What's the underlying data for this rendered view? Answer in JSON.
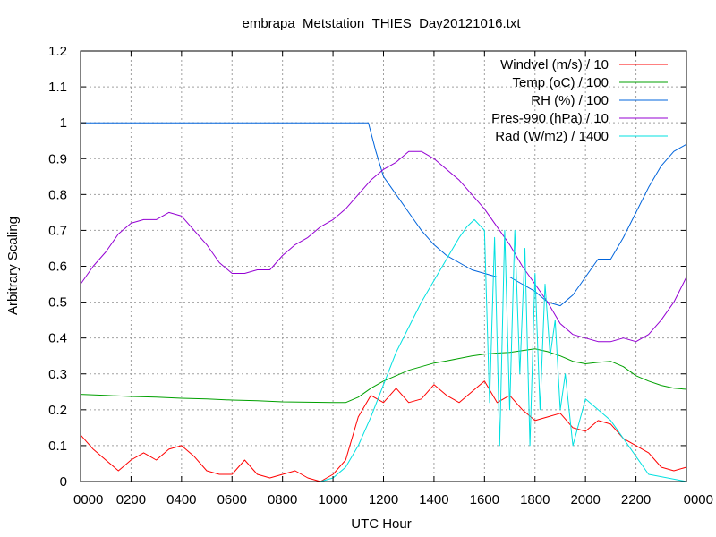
{
  "chart_data": {
    "type": "line",
    "title": "embrapa_Metstation_THIES_Day20121016.txt",
    "xlabel": "UTC Hour",
    "ylabel": "Arbitrary Scaling",
    "xlim": [
      0,
      24
    ],
    "ylim": [
      0,
      1.2
    ],
    "x_ticks": [
      {
        "value": 0,
        "label": "0000"
      },
      {
        "value": 2,
        "label": "0200"
      },
      {
        "value": 4,
        "label": "0400"
      },
      {
        "value": 6,
        "label": "0600"
      },
      {
        "value": 8,
        "label": "0800"
      },
      {
        "value": 10,
        "label": "1000"
      },
      {
        "value": 12,
        "label": "1200"
      },
      {
        "value": 14,
        "label": "1400"
      },
      {
        "value": 16,
        "label": "1600"
      },
      {
        "value": 18,
        "label": "1800"
      },
      {
        "value": 20,
        "label": "2000"
      },
      {
        "value": 22,
        "label": "2200"
      },
      {
        "value": 24,
        "label": "0000"
      }
    ],
    "y_ticks": [
      {
        "value": 0,
        "label": "0"
      },
      {
        "value": 0.1,
        "label": "0.1"
      },
      {
        "value": 0.2,
        "label": "0.2"
      },
      {
        "value": 0.3,
        "label": "0.3"
      },
      {
        "value": 0.4,
        "label": "0.4"
      },
      {
        "value": 0.5,
        "label": "0.5"
      },
      {
        "value": 0.6,
        "label": "0.6"
      },
      {
        "value": 0.7,
        "label": "0.7"
      },
      {
        "value": 0.8,
        "label": "0.8"
      },
      {
        "value": 0.9,
        "label": "0.9"
      },
      {
        "value": 1,
        "label": "1"
      },
      {
        "value": 1.1,
        "label": "1.1"
      },
      {
        "value": 1.2,
        "label": "1.2"
      }
    ],
    "grid": true,
    "legend_position": "top-right",
    "series": [
      {
        "name": "Windvel (m/s) / 10",
        "color": "#ff0000",
        "x": [
          0,
          0.5,
          1,
          1.5,
          2,
          2.5,
          3,
          3.5,
          4,
          4.5,
          5,
          5.5,
          6,
          6.5,
          7,
          7.5,
          8,
          8.5,
          9,
          9.5,
          10,
          10.5,
          11,
          11.5,
          12,
          12.5,
          13,
          13.5,
          14,
          14.5,
          15,
          15.5,
          16,
          16.5,
          17,
          17.5,
          18,
          18.5,
          19,
          19.5,
          20,
          20.5,
          21,
          21.5,
          22,
          22.5,
          23,
          23.5,
          24
        ],
        "y": [
          0.13,
          0.09,
          0.06,
          0.03,
          0.06,
          0.08,
          0.06,
          0.09,
          0.1,
          0.07,
          0.03,
          0.02,
          0.02,
          0.06,
          0.02,
          0.01,
          0.02,
          0.03,
          0.01,
          0,
          0.02,
          0.06,
          0.18,
          0.24,
          0.22,
          0.26,
          0.22,
          0.23,
          0.27,
          0.24,
          0.22,
          0.25,
          0.28,
          0.22,
          0.24,
          0.2,
          0.17,
          0.18,
          0.19,
          0.15,
          0.14,
          0.17,
          0.16,
          0.12,
          0.1,
          0.08,
          0.04,
          0.03,
          0.04
        ]
      },
      {
        "name": "Temp (oC) / 100",
        "color": "#00a000",
        "x": [
          0,
          1,
          2,
          3,
          4,
          5,
          6,
          7,
          8,
          9,
          10,
          10.5,
          11,
          11.5,
          12,
          12.5,
          13,
          13.5,
          14,
          14.5,
          15,
          15.5,
          16,
          16.5,
          17,
          17.5,
          18,
          18.5,
          19,
          19.5,
          20,
          20.5,
          21,
          21.5,
          22,
          22.5,
          23,
          23.5,
          24
        ],
        "y": [
          0.243,
          0.24,
          0.237,
          0.235,
          0.232,
          0.23,
          0.227,
          0.225,
          0.222,
          0.221,
          0.22,
          0.22,
          0.235,
          0.26,
          0.28,
          0.295,
          0.31,
          0.32,
          0.33,
          0.336,
          0.343,
          0.35,
          0.355,
          0.358,
          0.36,
          0.365,
          0.37,
          0.362,
          0.35,
          0.335,
          0.328,
          0.332,
          0.335,
          0.32,
          0.295,
          0.28,
          0.268,
          0.26,
          0.257
        ]
      },
      {
        "name": "RH (%) / 100",
        "color": "#0064dc",
        "x": [
          0,
          2,
          4,
          6,
          8,
          10,
          11,
          11.4,
          11.7,
          12,
          12.5,
          13,
          13.5,
          14,
          14.5,
          15,
          15.5,
          16,
          16.5,
          17,
          17.5,
          18,
          18.5,
          19,
          19.5,
          20,
          20.5,
          21,
          21.5,
          22,
          22.5,
          23,
          23.5,
          24
        ],
        "y": [
          1,
          1,
          1,
          1,
          1,
          1,
          1,
          1,
          0.92,
          0.85,
          0.8,
          0.75,
          0.7,
          0.66,
          0.63,
          0.61,
          0.59,
          0.58,
          0.57,
          0.57,
          0.55,
          0.53,
          0.5,
          0.49,
          0.52,
          0.57,
          0.62,
          0.62,
          0.68,
          0.75,
          0.82,
          0.88,
          0.92,
          0.94
        ]
      },
      {
        "name": "Pres-990 (hPa) / 10",
        "color": "#9400d3",
        "x": [
          0,
          0.5,
          1,
          1.5,
          2,
          2.5,
          3,
          3.5,
          4,
          4.5,
          5,
          5.5,
          6,
          6.5,
          7,
          7.5,
          8,
          8.5,
          9,
          9.5,
          10,
          10.5,
          11,
          11.5,
          12,
          12.5,
          13,
          13.5,
          14,
          14.5,
          15,
          15.5,
          16,
          16.5,
          17,
          17.5,
          18,
          18.5,
          19,
          19.5,
          20,
          20.5,
          21,
          21.5,
          22,
          22.5,
          23,
          23.5,
          24
        ],
        "y": [
          0.55,
          0.6,
          0.64,
          0.69,
          0.72,
          0.73,
          0.73,
          0.75,
          0.74,
          0.7,
          0.66,
          0.61,
          0.58,
          0.58,
          0.59,
          0.59,
          0.63,
          0.66,
          0.68,
          0.71,
          0.73,
          0.76,
          0.8,
          0.84,
          0.87,
          0.89,
          0.92,
          0.92,
          0.9,
          0.87,
          0.84,
          0.8,
          0.76,
          0.71,
          0.66,
          0.6,
          0.55,
          0.5,
          0.44,
          0.41,
          0.4,
          0.39,
          0.39,
          0.4,
          0.39,
          0.41,
          0.45,
          0.5,
          0.57
        ]
      },
      {
        "name": "Rad (W/m2) / 1400",
        "color": "#00e0e0",
        "x": [
          0,
          8,
          9.5,
          10,
          10.5,
          11,
          11.5,
          12,
          12.5,
          13,
          13.5,
          14,
          14.5,
          15,
          15.3,
          15.6,
          16,
          16.2,
          16.4,
          16.6,
          16.8,
          17,
          17.2,
          17.4,
          17.6,
          17.8,
          18,
          18.2,
          18.4,
          18.6,
          18.8,
          19,
          19.2,
          19.5,
          20,
          20.5,
          21,
          21.5,
          22,
          22.5,
          24
        ],
        "y": [
          0,
          0,
          0,
          0.01,
          0.04,
          0.1,
          0.18,
          0.27,
          0.36,
          0.43,
          0.5,
          0.56,
          0.62,
          0.68,
          0.71,
          0.73,
          0.7,
          0.22,
          0.68,
          0.1,
          0.7,
          0.2,
          0.7,
          0.3,
          0.65,
          0.1,
          0.58,
          0.2,
          0.55,
          0.35,
          0.45,
          0.2,
          0.3,
          0.1,
          0.23,
          0.2,
          0.17,
          0.12,
          0.07,
          0.02,
          0
        ]
      }
    ]
  }
}
